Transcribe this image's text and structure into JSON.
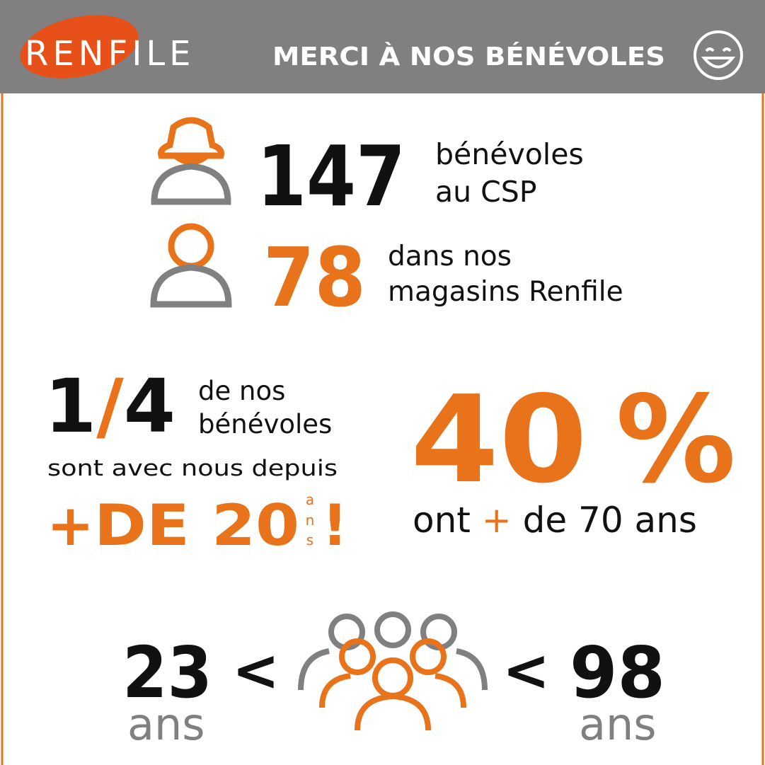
{
  "header": {
    "logo_left": "REN",
    "logo_right": "FILE",
    "title": "MERCI À NOS BÉNÉVOLES"
  },
  "csp": {
    "number": "147",
    "line1": "bénévoles",
    "line2": "au CSP"
  },
  "stores": {
    "number": "78",
    "line1": "dans nos",
    "line2": "magasins Renfile"
  },
  "seniority": {
    "numerator": "1",
    "slash": "/",
    "denominator": "4",
    "line1": "de nos",
    "line2": "bénévoles",
    "line3": "sont avec nous depuis",
    "plus": "+",
    "amount": "DE 20",
    "unit_letters": [
      "a",
      "n",
      "s"
    ],
    "exclamation": "!"
  },
  "age": {
    "number": "40",
    "percent": "%",
    "word1": "ont",
    "plus": "+",
    "rest": "de 70 ans"
  },
  "range": {
    "min": "23",
    "min_unit": "ans",
    "lt1": "<",
    "lt2": "<",
    "max": "98",
    "max_unit": "ans"
  }
}
